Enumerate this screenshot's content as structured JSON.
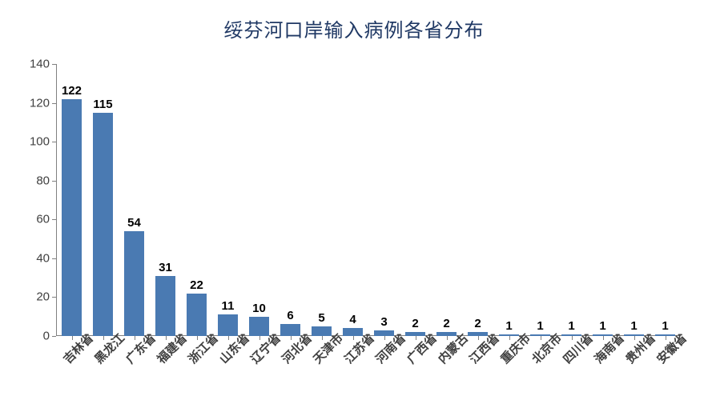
{
  "chart": {
    "type": "bar",
    "title": "绥芬河口岸输入病例各省分布",
    "title_fontsize": 24,
    "title_color": "#1f3864",
    "background_color": "#ffffff",
    "bar_color": "#4a7ab2",
    "axis_line_color": "#808080",
    "label_color": "#404040",
    "value_label_color": "#000000",
    "value_label_fontsize": 15,
    "ytick_fontsize": 15,
    "xtick_fontsize": 15,
    "ylim": [
      0,
      140
    ],
    "ytick_step": 20,
    "yticks": [
      0,
      20,
      40,
      60,
      80,
      100,
      120,
      140
    ],
    "bar_width_ratio": 0.62,
    "xtick_rotation": -45,
    "categories": [
      "吉林省",
      "黑龙江",
      "广东省",
      "福建省",
      "浙江省",
      "山东省",
      "辽宁省",
      "河北省",
      "天津市",
      "江苏省",
      "河南省",
      "广西省",
      "内蒙古",
      "江西省",
      "重庆市",
      "北京市",
      "四川省",
      "海南省",
      "贵州省",
      "安徽省"
    ],
    "values": [
      122,
      115,
      54,
      31,
      22,
      11,
      10,
      6,
      5,
      4,
      3,
      2,
      2,
      2,
      1,
      1,
      1,
      1,
      1,
      1
    ]
  }
}
